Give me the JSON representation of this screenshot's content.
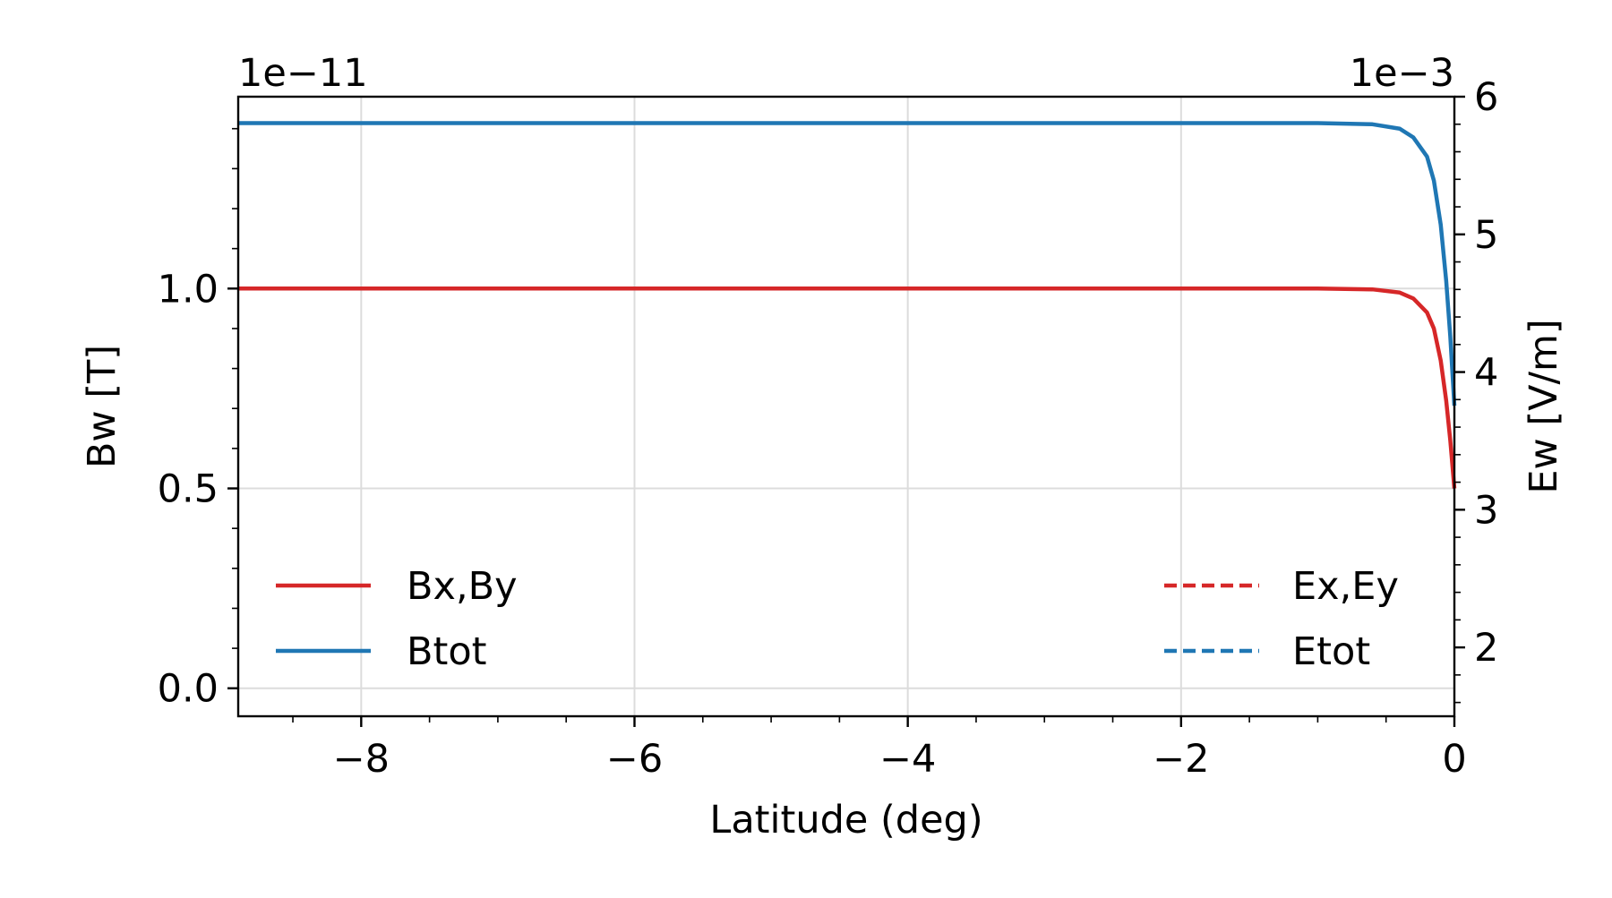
{
  "chart_data": {
    "type": "line",
    "xlabel": "Latitude (deg)",
    "ylabel_left": "Bw [T]",
    "ylabel_right": "Ew [V/m]",
    "offset_left": "1e−11",
    "offset_right": "1e−3",
    "xlim": [
      -8.9,
      0
    ],
    "ylim_left": [
      -0.07,
      1.48
    ],
    "ylim_right": [
      1.5,
      6.0
    ],
    "grid": true,
    "x_ticks": [
      -8,
      -6,
      -4,
      -2,
      0
    ],
    "x_tick_labels": [
      "−8",
      "−6",
      "−4",
      "−2",
      "0"
    ],
    "y_left_ticks": [
      0.0,
      0.5,
      1.0
    ],
    "y_left_tick_labels": [
      "0.0",
      "0.5",
      "1.0"
    ],
    "y_right_ticks": [
      2,
      3,
      4,
      5,
      6
    ],
    "y_right_tick_labels": [
      "2",
      "3",
      "4",
      "5",
      "6"
    ],
    "series": [
      {
        "name": "Bx,By",
        "axis": "left",
        "style": "solid",
        "color": "#d62728",
        "x": [
          -8.9,
          -2.0,
          -1.0,
          -0.6,
          -0.4,
          -0.3,
          -0.2,
          -0.15,
          -0.1,
          -0.06,
          -0.03,
          0.0
        ],
        "y": [
          1.0,
          1.0,
          1.0,
          0.998,
          0.99,
          0.975,
          0.94,
          0.9,
          0.82,
          0.72,
          0.62,
          0.5
        ]
      },
      {
        "name": "Btot",
        "axis": "left",
        "style": "solid",
        "color": "#1f77b4",
        "x": [
          -8.9,
          -2.0,
          -1.0,
          -0.6,
          -0.4,
          -0.3,
          -0.2,
          -0.15,
          -0.1,
          -0.06,
          -0.03,
          0.0
        ],
        "y": [
          1.414,
          1.414,
          1.414,
          1.411,
          1.4,
          1.378,
          1.33,
          1.27,
          1.16,
          1.02,
          0.88,
          0.707
        ]
      },
      {
        "name": "Ex,Ey",
        "axis": "right",
        "style": "dashed",
        "color": "#d62728",
        "x": [],
        "y": []
      },
      {
        "name": "Etot",
        "axis": "right",
        "style": "dashed",
        "color": "#1f77b4",
        "x": [],
        "y": []
      }
    ],
    "legends": [
      {
        "placement": "lower-left",
        "entries": [
          "Bx,By",
          "Btot"
        ]
      },
      {
        "placement": "lower-right",
        "entries": [
          "Ex,Ey",
          "Etot"
        ]
      }
    ]
  }
}
